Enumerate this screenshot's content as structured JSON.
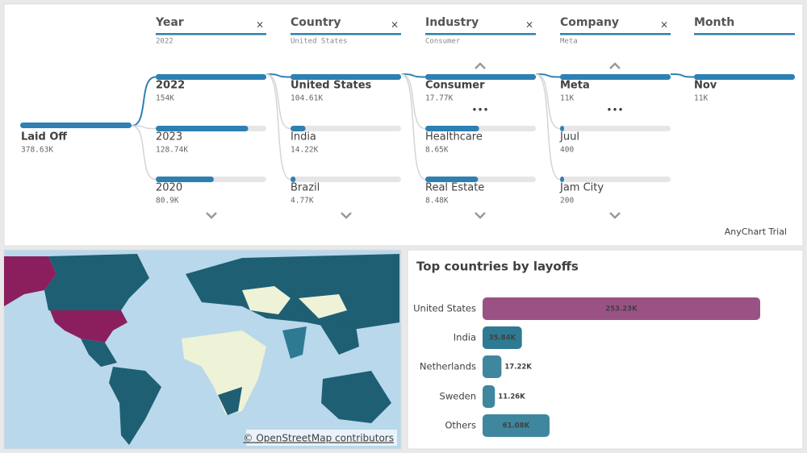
{
  "tree": {
    "root": {
      "label": "Laid Off",
      "value": 378630,
      "value_label": "378.63K"
    },
    "levels": [
      {
        "title": "Year",
        "filter": "2022",
        "items": [
          {
            "label": "2022",
            "value": 154000,
            "value_label": "154K"
          },
          {
            "label": "2023",
            "value": 128740,
            "value_label": "128.74K"
          },
          {
            "label": "2020",
            "value": 80900,
            "value_label": "80.9K"
          }
        ]
      },
      {
        "title": "Country",
        "filter": "United States",
        "items": [
          {
            "label": "United States",
            "value": 104610,
            "value_label": "104.61K"
          },
          {
            "label": "India",
            "value": 14220,
            "value_label": "14.22K"
          },
          {
            "label": "Brazil",
            "value": 4770,
            "value_label": "4.77K"
          }
        ]
      },
      {
        "title": "Industry",
        "filter": "Consumer",
        "items": [
          {
            "label": "Consumer",
            "value": 17770,
            "value_label": "17.77K"
          },
          {
            "label": "Healthcare",
            "value": 8650,
            "value_label": "8.65K"
          },
          {
            "label": "Real Estate",
            "value": 8480,
            "value_label": "8.48K"
          }
        ]
      },
      {
        "title": "Company",
        "filter": "Meta",
        "items": [
          {
            "label": "Meta",
            "value": 11000,
            "value_label": "11K"
          },
          {
            "label": "Juul",
            "value": 400
          },
          {
            "label": "Jam City",
            "value": 200
          }
        ]
      },
      {
        "title": "Month",
        "items": [
          {
            "label": "Nov",
            "value": 11000,
            "value_label": "11K"
          }
        ]
      }
    ],
    "watermark": "AnyChart Trial"
  },
  "map": {
    "attribution": "© OpenStreetMap contributors"
  },
  "chart_data": {
    "type": "bar",
    "orientation": "horizontal",
    "title": "Top countries by layoffs",
    "categories": [
      "United States",
      "India",
      "Netherlands",
      "Sweden",
      "Others"
    ],
    "values": [
      253230,
      35840,
      17220,
      11260,
      61080
    ],
    "value_labels": [
      "253.23K",
      "35.84K",
      "17.22K",
      "11.26K",
      "61.08K"
    ],
    "colors": [
      "#9a5284",
      "#2f7a93",
      "#3f879e",
      "#3f879e",
      "#3f879e"
    ]
  }
}
